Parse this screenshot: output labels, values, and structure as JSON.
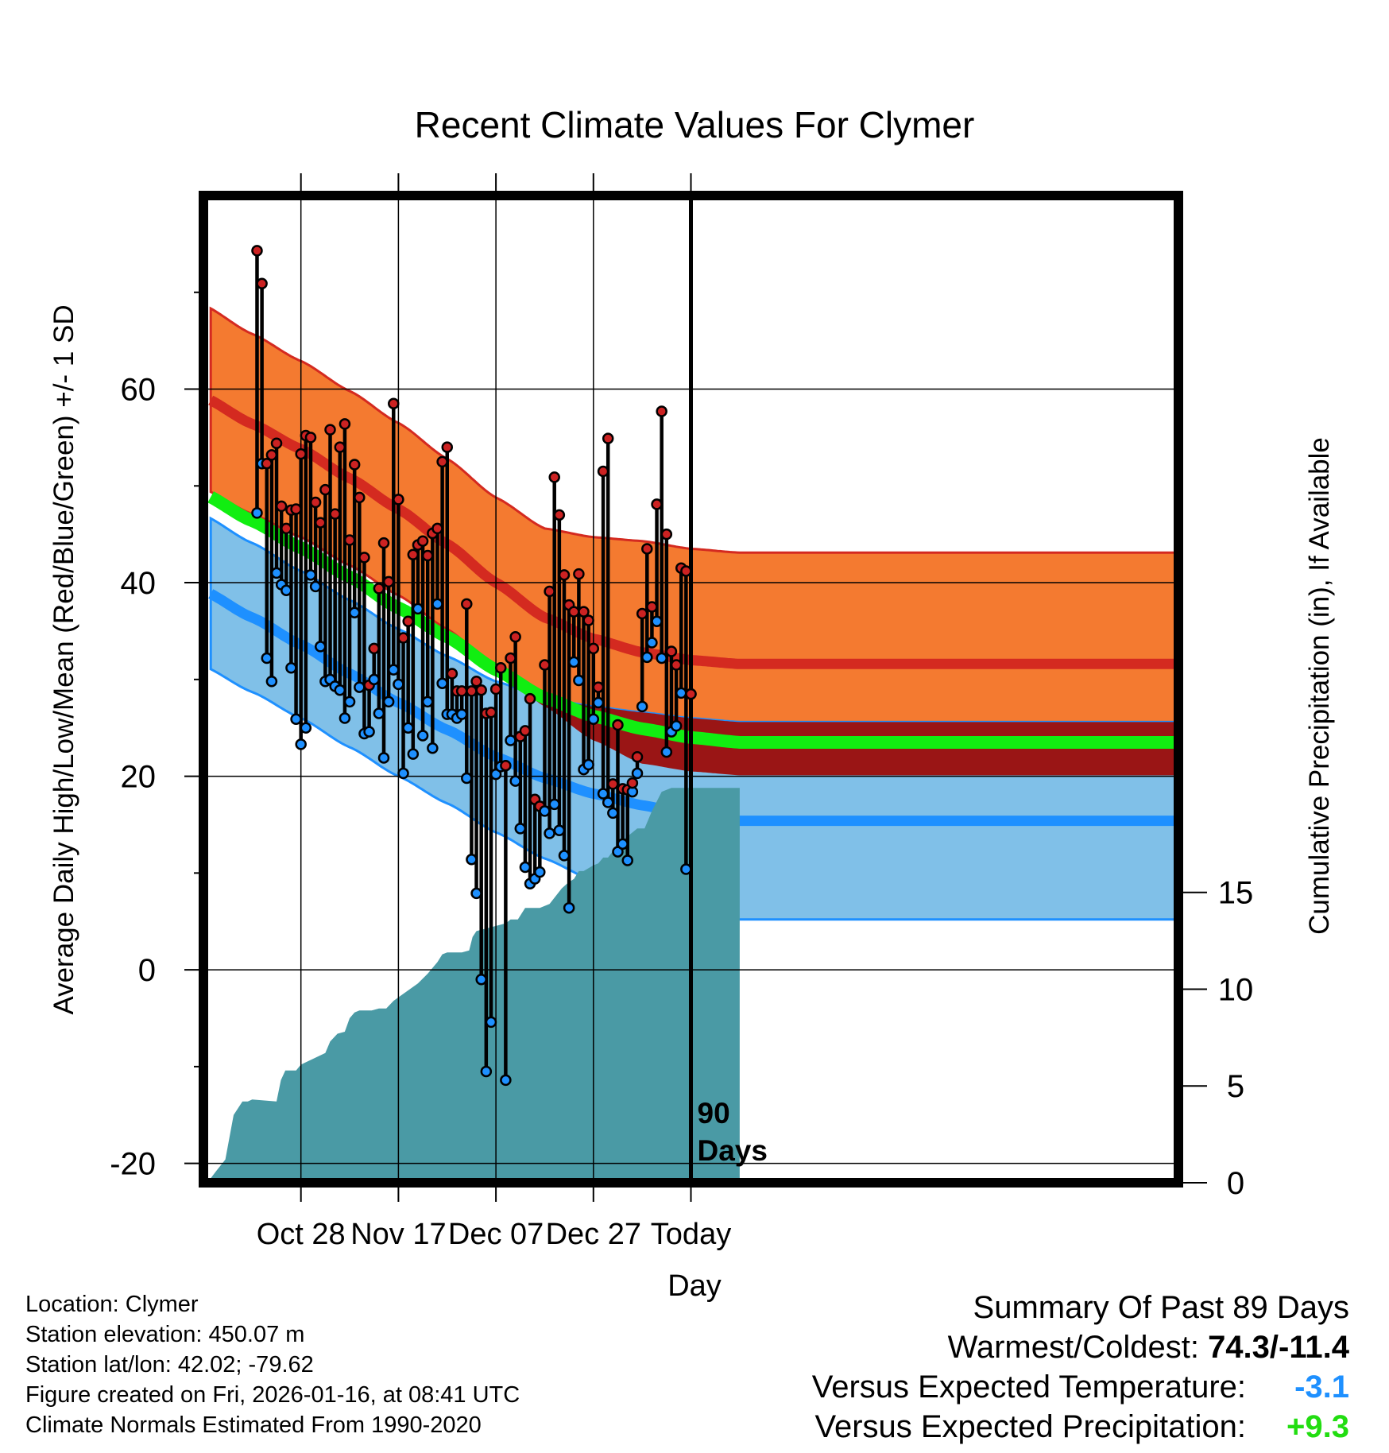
{
  "chart_data": {
    "type": "line",
    "title": "Recent Climate Values For Clymer",
    "xlabel": "Day",
    "ylabel": "Average Daily High/Low/Mean (Red/Blue/Green) +/- 1 SD",
    "y2label": "Cumulative Precipitation (in), If Available",
    "xlim": [
      -11,
      9
    ],
    "ylim": [
      -22,
      80
    ],
    "y2lim": [
      0,
      51
    ],
    "x_ticks": [
      {
        "x": -9,
        "label": "Oct 28"
      },
      {
        "x": -7,
        "label": "Nov 17"
      },
      {
        "x": -5,
        "label": "Dec 07"
      },
      {
        "x": -3,
        "label": "Dec 27"
      },
      {
        "x": -1,
        "label": "Today"
      }
    ],
    "y_ticks": [
      "-20",
      "0",
      "20",
      "40",
      "60"
    ],
    "y_tick_values": [
      -20,
      0,
      20,
      40,
      60
    ],
    "y2_ticks": [
      "0",
      "5",
      "10",
      "15"
    ],
    "y2_tick_values": [
      0,
      5,
      10,
      15
    ],
    "today_label": "90 Days",
    "normals": {
      "x": [
        -11,
        -10,
        -9,
        -8,
        -7,
        -6,
        -5,
        -4,
        -3,
        -2,
        -1,
        0
      ],
      "high_mean": [
        59.2,
        56.4,
        53.8,
        50.8,
        47.6,
        44.0,
        40.0,
        36.4,
        34.2,
        32.8,
        32.0,
        31.6
      ],
      "high_sd": [
        9.5,
        9.3,
        9.1,
        9.0,
        8.9,
        8.8,
        8.8,
        9.2,
        10.5,
        11.5,
        11.5,
        11.5
      ],
      "low_mean": [
        39.2,
        36.4,
        33.6,
        30.6,
        27.6,
        24.8,
        22.0,
        19.8,
        18.2,
        17.0,
        16.0,
        15.4
      ],
      "low_sd": [
        7.8,
        7.7,
        7.6,
        7.6,
        7.6,
        7.6,
        7.8,
        8.3,
        9.0,
        9.6,
        10.0,
        10.2
      ],
      "mean": [
        49.2,
        46.4,
        43.6,
        40.6,
        37.4,
        34.4,
        31.0,
        28.1,
        26.2,
        24.9,
        24.0,
        23.5
      ]
    },
    "series": [
      {
        "name": "High",
        "color": "#cc2222",
        "values": [
          74.3,
          70.9,
          52.3,
          53.2,
          54.4,
          47.9,
          45.6,
          47.5,
          47.6,
          53.3,
          55.2,
          55.0,
          48.3,
          46.2,
          49.6,
          55.8,
          47.1,
          54.0,
          56.4,
          44.4,
          52.2,
          48.8,
          42.6,
          29.4,
          33.2,
          39.4,
          44.1,
          40.1,
          58.5,
          48.6,
          34.3,
          36.0,
          42.9,
          43.9,
          44.3,
          42.8,
          45.1,
          45.6,
          52.5,
          54.0,
          30.6,
          28.8,
          28.8,
          37.8,
          28.8,
          29.8,
          28.9,
          26.5,
          26.6,
          29.0,
          31.2,
          21.1,
          32.2,
          34.4,
          24.1,
          24.7,
          28.0,
          17.6,
          16.9,
          31.5,
          39.1,
          50.9,
          47.0,
          40.8,
          37.7,
          37.0,
          40.9,
          37.0,
          36.1,
          33.2,
          29.2,
          51.5,
          54.9,
          19.2,
          25.3,
          18.7,
          18.6,
          19.3,
          22.0,
          36.8,
          43.5,
          37.5,
          48.1,
          57.7,
          45.0,
          32.9,
          31.5,
          41.5,
          41.2,
          28.5
        ]
      },
      {
        "name": "Low",
        "color": "#1e90ff",
        "values": [
          47.2,
          52.3,
          32.2,
          29.8,
          41.0,
          39.8,
          39.2,
          31.2,
          25.9,
          23.3,
          25.0,
          40.8,
          39.6,
          33.4,
          29.8,
          30.0,
          29.3,
          28.9,
          26.0,
          27.7,
          36.9,
          29.2,
          24.4,
          24.6,
          30.0,
          26.5,
          21.9,
          27.7,
          31.0,
          29.5,
          20.3,
          25.0,
          22.3,
          37.3,
          24.2,
          27.7,
          22.9,
          37.8,
          29.6,
          26.4,
          26.4,
          26.0,
          26.4,
          19.8,
          11.4,
          7.9,
          -1.0,
          -10.5,
          -5.4,
          20.2,
          21.0,
          -11.4,
          23.7,
          19.5,
          14.6,
          10.6,
          8.9,
          9.4,
          10.1,
          16.4,
          14.1,
          17.1,
          14.4,
          11.8,
          6.4,
          31.8,
          29.9,
          20.7,
          21.2,
          25.9,
          27.6,
          18.2,
          17.3,
          16.2,
          12.2,
          13.0,
          11.3,
          18.4,
          20.3,
          27.2,
          32.3,
          33.8,
          36.0,
          32.2,
          22.5,
          24.6,
          25.2,
          28.6,
          10.4,
          28.5
        ]
      },
      {
        "name": "Cumulative Precipitation",
        "color": "#4a9aa5",
        "y2": true,
        "x": [
          -10.86,
          -10.74,
          -10.55,
          -10.38,
          -10.2,
          -10.09,
          -10.0,
          -9.5,
          -9.41,
          -9.32,
          -9.2,
          -9.1,
          -9.0,
          -8.5,
          -8.4,
          -8.25,
          -8.1,
          -8.0,
          -7.9,
          -7.8,
          -7.55,
          -7.4,
          -7.25,
          -7.1,
          -6.6,
          -6.4,
          -6.2,
          -6.1,
          -6.0,
          -5.9,
          -5.7,
          -5.55,
          -5.48,
          -5.4,
          -4.8,
          -4.7,
          -4.55,
          -4.4,
          -4.3,
          -4.2,
          -4.1,
          -3.9,
          -3.65,
          -3.52,
          -3.4,
          -3.3,
          -3.2,
          -3.0,
          -2.9,
          -2.8,
          -2.7,
          -2.55,
          -2.4,
          -2.2,
          -2.1,
          -1.95,
          -1.8,
          -1.6,
          -1.4,
          -1.2,
          0
        ],
        "values": [
          0.2,
          0.6,
          1.2,
          3.5,
          4.2,
          4.2,
          4.3,
          4.2,
          5.3,
          5.8,
          5.8,
          5.8,
          6.1,
          6.7,
          7.3,
          7.7,
          7.8,
          8.5,
          8.8,
          8.9,
          8.9,
          9.0,
          9.0,
          9.4,
          10.3,
          10.8,
          11.4,
          11.8,
          11.9,
          11.9,
          11.9,
          12.0,
          12.7,
          13.0,
          13.4,
          13.6,
          13.6,
          14.2,
          14.2,
          14.2,
          14.2,
          14.4,
          15.2,
          15.5,
          15.7,
          16.1,
          16.1,
          16.4,
          16.5,
          16.8,
          16.8,
          17.3,
          17.7,
          18.1,
          18.3,
          18.3,
          19.2,
          20.2,
          20.4,
          20.4,
          20.4
        ]
      }
    ]
  },
  "footer_left": {
    "location": "Location: Clymer",
    "elevation": "Station elevation: 450.07 m",
    "latlon": "Station lat/lon: 42.02; -79.62",
    "created": "Figure created on Fri, 2026-01-16, at 08:41 UTC",
    "normals": "Climate Normals Estimated From 1990-2020"
  },
  "summary": {
    "title": "Summary Of Past 89 Days",
    "warm_cold_label": "Warmest/Coldest: ",
    "warm_cold_value": "74.3/-11.4",
    "temp_label": "Versus Expected Temperature:",
    "temp_value": "-3.1",
    "precip_label": "Versus Expected Precipitation:",
    "precip_value": "+9.3"
  },
  "colors": {
    "high_band": "#f47a30",
    "high_band_edge": "#d42a20",
    "high_line": "#d42a20",
    "low_band": "#80c0e8",
    "low_line": "#1e90ff",
    "mean_line": "#11ee11",
    "overlap": "#9a1515",
    "precip_fill": "#4a9aa5",
    "high_dot": "#cc2222",
    "low_dot": "#1e90ff",
    "temp_delta": "#1e90ff",
    "precip_delta": "#22dd11"
  }
}
